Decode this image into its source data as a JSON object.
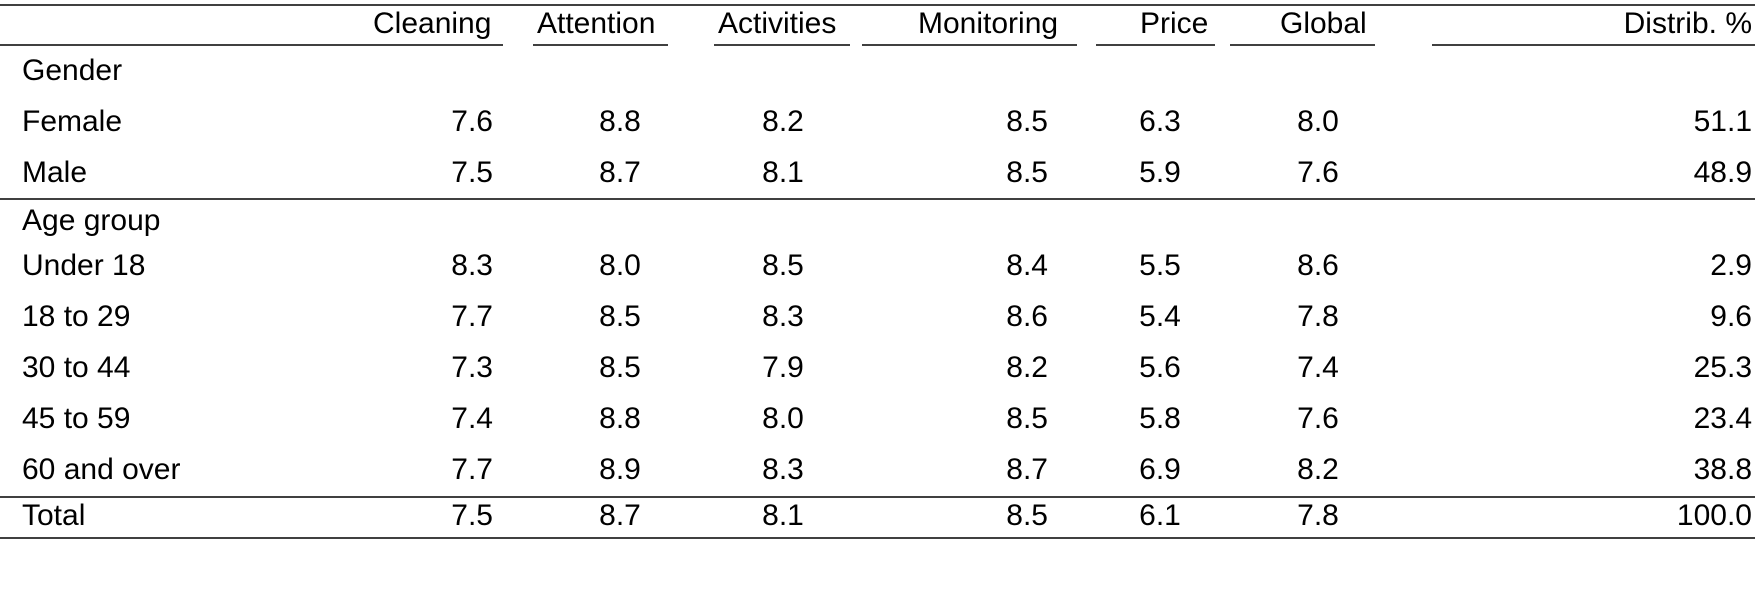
{
  "table": {
    "columns": [
      "Cleaning",
      "Attention",
      "Activities",
      "Monitoring",
      "Price",
      "Global",
      "Distrib. %"
    ],
    "sections": [
      {
        "title": "Gender",
        "rows": [
          {
            "label": "Female",
            "values": [
              "7.6",
              "8.8",
              "8.2",
              "8.5",
              "6.3",
              "8.0",
              "51.1"
            ]
          },
          {
            "label": "Male",
            "values": [
              "7.5",
              "8.7",
              "8.1",
              "8.5",
              "5.9",
              "7.6",
              "48.9"
            ]
          }
        ]
      },
      {
        "title": "Age group",
        "rows": [
          {
            "label": "Under 18",
            "values": [
              "8.3",
              "8.0",
              "8.5",
              "8.4",
              "5.5",
              "8.6",
              "2.9"
            ]
          },
          {
            "label": "18 to 29",
            "values": [
              "7.7",
              "8.5",
              "8.3",
              "8.6",
              "5.4",
              "7.8",
              "9.6"
            ]
          },
          {
            "label": "30 to 44",
            "values": [
              "7.3",
              "8.5",
              "7.9",
              "8.2",
              "5.6",
              "7.4",
              "25.3"
            ]
          },
          {
            "label": "45 to 59",
            "values": [
              "7.4",
              "8.8",
              "8.0",
              "8.5",
              "5.8",
              "7.6",
              "23.4"
            ]
          },
          {
            "label": "60 and over",
            "values": [
              "7.7",
              "8.9",
              "8.3",
              "8.7",
              "6.9",
              "8.2",
              "38.8"
            ]
          }
        ]
      }
    ],
    "total": {
      "label": "Total",
      "values": [
        "7.5",
        "8.7",
        "8.1",
        "8.5",
        "6.1",
        "7.8",
        "100.0"
      ]
    }
  }
}
